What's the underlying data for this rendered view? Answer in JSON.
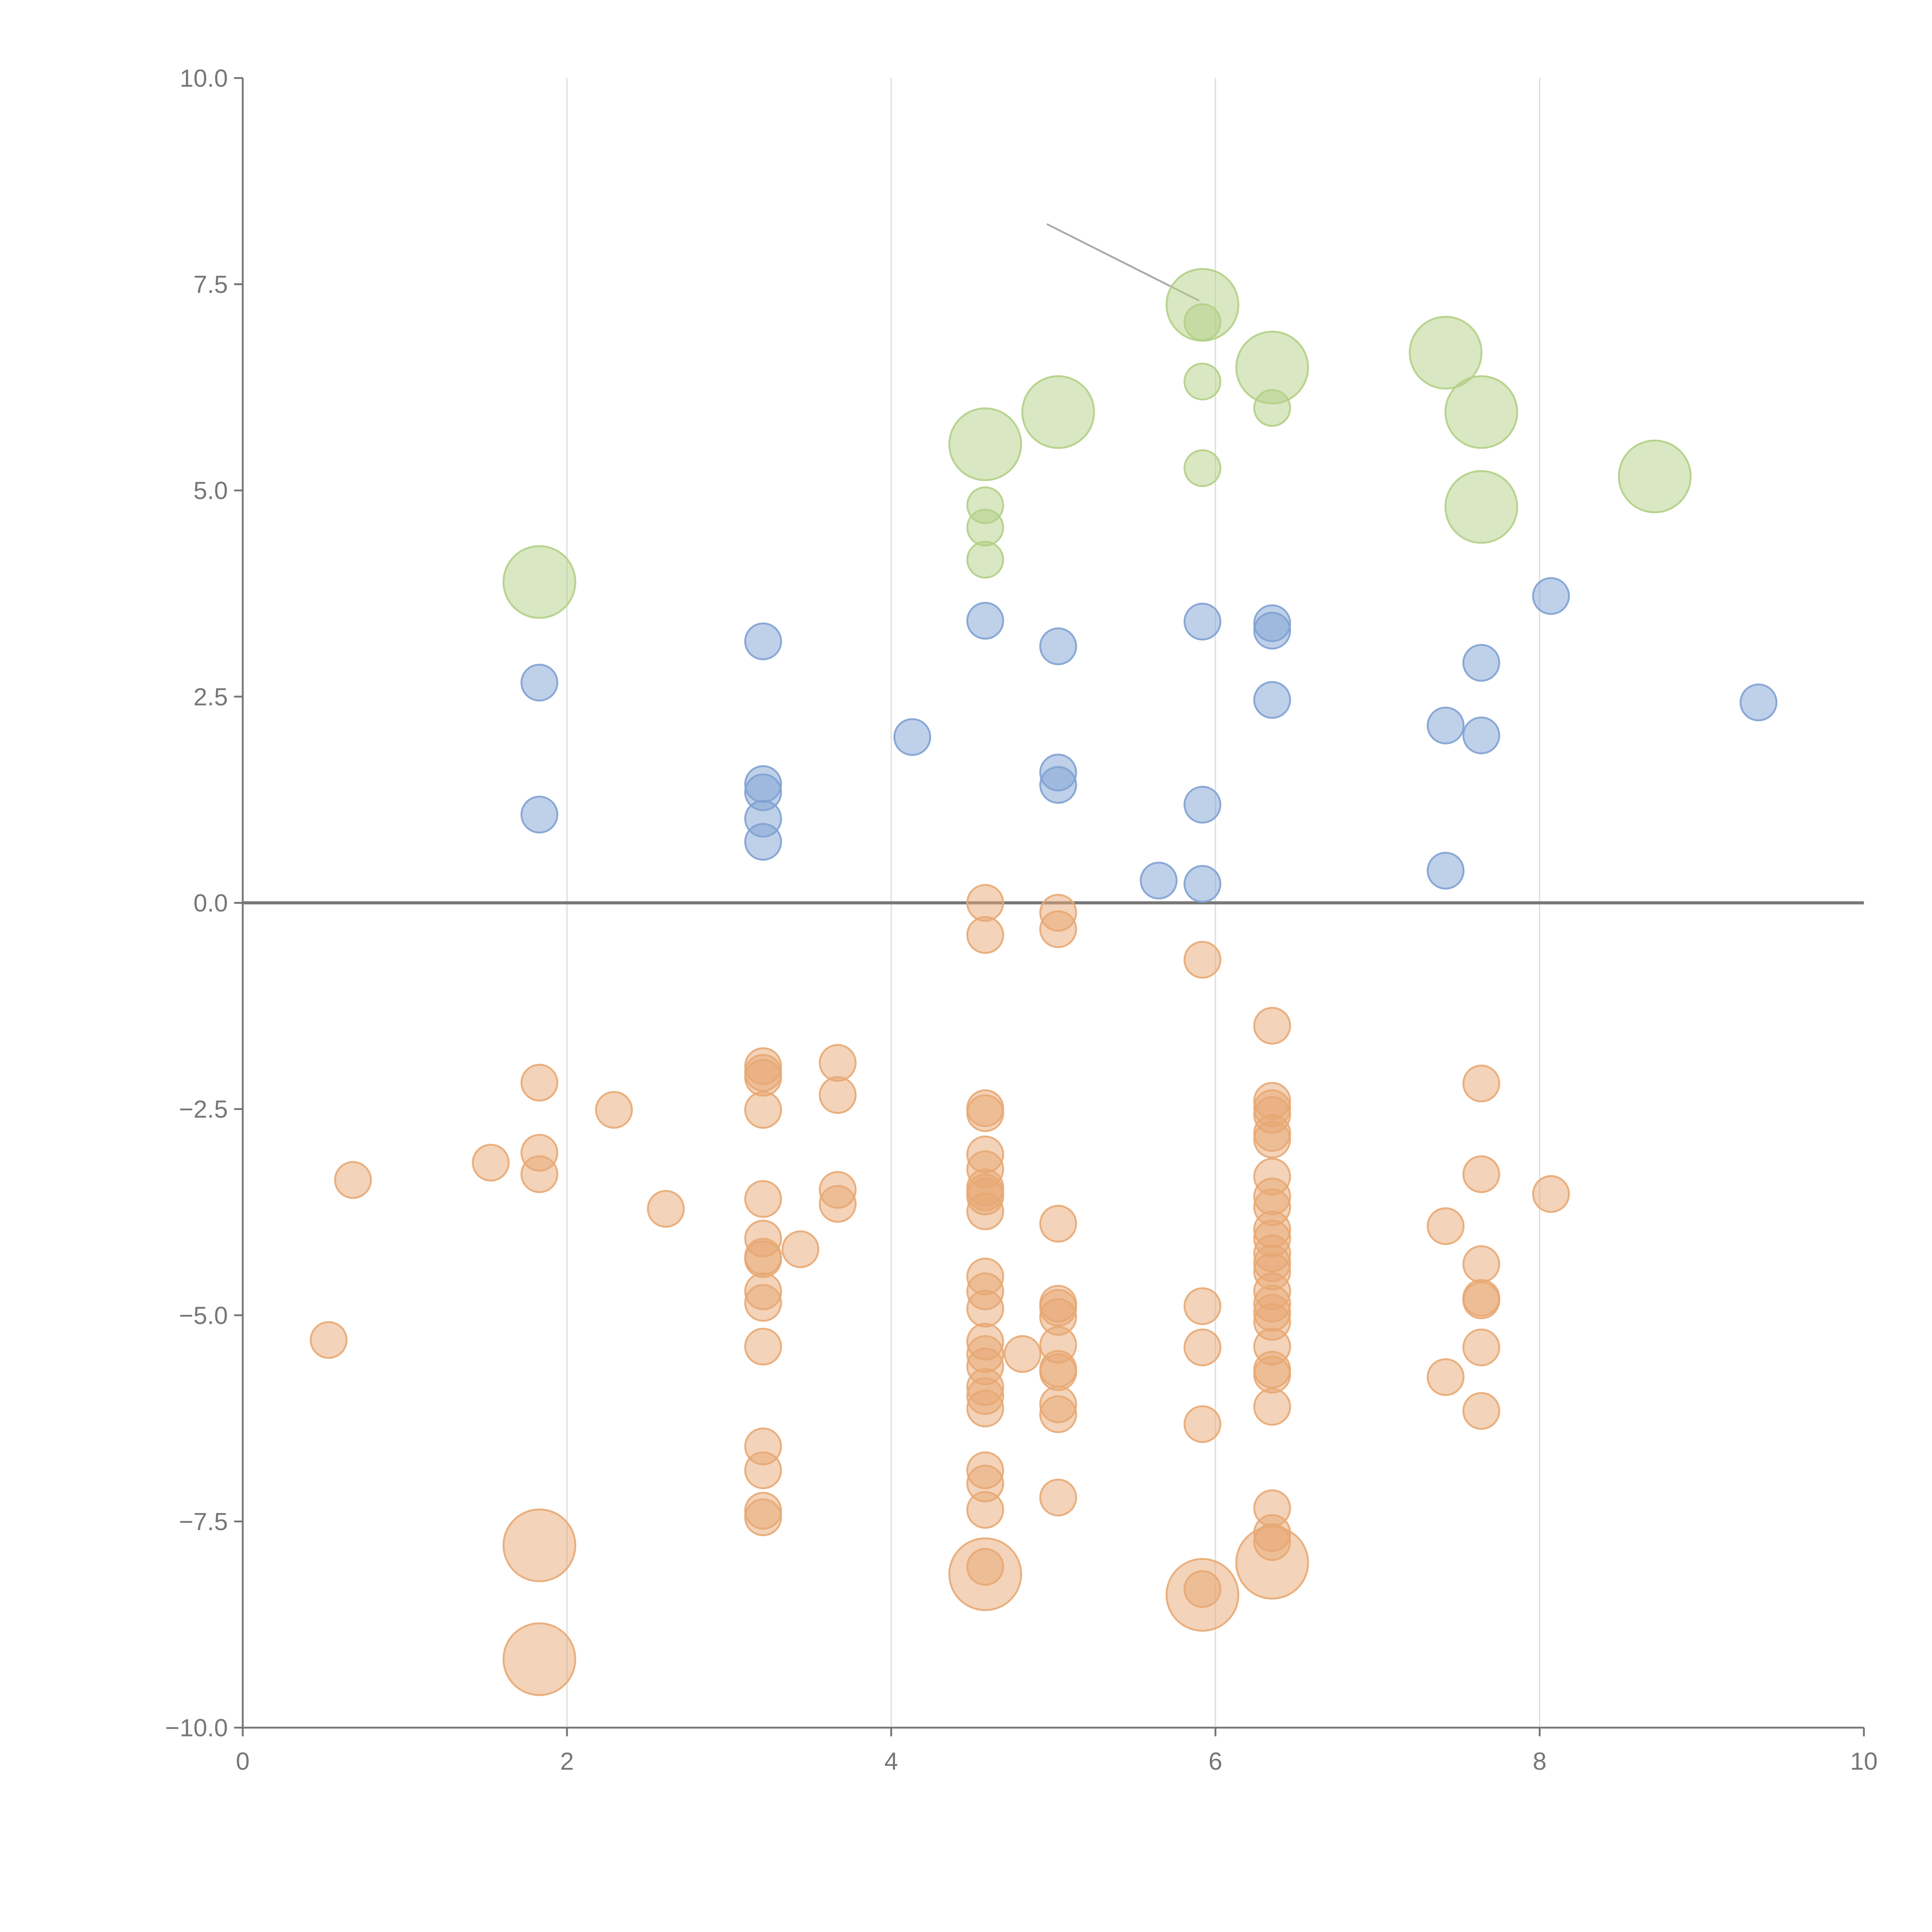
{
  "chart_data": {
    "type": "scatter",
    "title": "",
    "xlabel": "",
    "ylabel": "",
    "xlim": [
      0,
      10
    ],
    "ylim": [
      -10,
      10
    ],
    "x_ticks": [
      "0",
      "2",
      "4",
      "6",
      "8",
      "10"
    ],
    "x_tick_values": [
      0,
      2,
      4,
      6,
      8,
      10
    ],
    "y_ticks": [
      "10.0",
      "7.5",
      "5.0",
      "2.5",
      "0.0",
      "−2.5",
      "−5.0",
      "−7.5",
      "−10.0"
    ],
    "y_tick_values": [
      10,
      7.5,
      5,
      2.5,
      0,
      -2.5,
      -5,
      -7.5,
      -10
    ],
    "grid": "vertical",
    "reference_line_y": 0,
    "annotation_line": {
      "from": [
        4.96,
        8.23
      ],
      "to": [
        5.9,
        7.3
      ]
    },
    "series": [
      {
        "name": "green",
        "color": "#b3cf86",
        "points": [
          [
            1.83,
            3.89,
            2
          ],
          [
            4.58,
            5.56,
            2
          ],
          [
            5.03,
            5.95,
            2
          ],
          [
            5.92,
            7.25,
            2
          ],
          [
            6.35,
            6.49,
            2
          ],
          [
            7.42,
            6.67,
            2
          ],
          [
            7.64,
            5.95,
            2
          ],
          [
            7.64,
            4.8,
            2
          ],
          [
            8.71,
            5.17,
            2
          ],
          [
            5.92,
            7.04,
            1
          ],
          [
            5.92,
            6.32,
            1
          ],
          [
            5.92,
            5.27,
            1
          ],
          [
            6.35,
            6.0,
            1
          ],
          [
            4.58,
            4.82,
            1
          ],
          [
            4.58,
            4.55,
            1
          ],
          [
            4.58,
            4.16,
            1
          ]
        ]
      },
      {
        "name": "blue",
        "color": "#7fa1d3",
        "points": [
          [
            1.83,
            2.67,
            1
          ],
          [
            1.83,
            1.07,
            1
          ],
          [
            3.21,
            3.17,
            1
          ],
          [
            3.21,
            1.44,
            1
          ],
          [
            3.21,
            1.34,
            1
          ],
          [
            3.21,
            1.02,
            1
          ],
          [
            3.21,
            0.74,
            1
          ],
          [
            4.13,
            2.01,
            1
          ],
          [
            4.58,
            3.42,
            1
          ],
          [
            5.03,
            3.11,
            1
          ],
          [
            5.03,
            1.58,
            1
          ],
          [
            5.03,
            1.43,
            1
          ],
          [
            5.65,
            0.27,
            1
          ],
          [
            5.92,
            3.41,
            1
          ],
          [
            5.92,
            1.19,
            1
          ],
          [
            5.92,
            0.23,
            1
          ],
          [
            6.35,
            3.39,
            1
          ],
          [
            6.35,
            3.3,
            1
          ],
          [
            6.35,
            2.46,
            1
          ],
          [
            7.42,
            2.15,
            1
          ],
          [
            7.64,
            2.91,
            1
          ],
          [
            7.64,
            2.03,
            1
          ],
          [
            7.42,
            0.39,
            1
          ],
          [
            8.07,
            3.72,
            1
          ],
          [
            9.35,
            2.43,
            1
          ]
        ]
      },
      {
        "name": "orange",
        "color": "#e8a873",
        "points": [
          [
            0.53,
            -5.3,
            1
          ],
          [
            0.68,
            -3.36,
            1
          ],
          [
            1.53,
            -3.15,
            1
          ],
          [
            1.83,
            -2.18,
            1
          ],
          [
            1.83,
            -3.03,
            1
          ],
          [
            1.83,
            -3.29,
            1
          ],
          [
            1.83,
            -7.79,
            2
          ],
          [
            1.83,
            -9.17,
            2
          ],
          [
            2.29,
            -2.51,
            1
          ],
          [
            2.61,
            -3.71,
            1
          ],
          [
            3.21,
            -1.98,
            1
          ],
          [
            3.21,
            -2.06,
            1
          ],
          [
            3.21,
            -2.12,
            1
          ],
          [
            3.21,
            -2.51,
            1
          ],
          [
            3.21,
            -3.59,
            1
          ],
          [
            3.21,
            -4.07,
            1
          ],
          [
            3.21,
            -4.29,
            1
          ],
          [
            3.21,
            -4.32,
            1
          ],
          [
            3.21,
            -4.71,
            1
          ],
          [
            3.21,
            -4.85,
            1
          ],
          [
            3.21,
            -5.38,
            1
          ],
          [
            3.21,
            -6.59,
            1
          ],
          [
            3.21,
            -6.88,
            1
          ],
          [
            3.21,
            -7.37,
            1
          ],
          [
            3.21,
            -7.45,
            1
          ],
          [
            3.44,
            -4.2,
            1
          ],
          [
            3.67,
            -1.94,
            1
          ],
          [
            3.67,
            -2.33,
            1
          ],
          [
            3.67,
            -3.48,
            1
          ],
          [
            3.67,
            -3.65,
            1
          ],
          [
            4.58,
            0.0,
            1
          ],
          [
            4.58,
            -0.39,
            1
          ],
          [
            4.58,
            -2.49,
            1
          ],
          [
            4.58,
            -2.55,
            1
          ],
          [
            4.58,
            -3.05,
            1
          ],
          [
            4.58,
            -3.23,
            1
          ],
          [
            4.58,
            -3.45,
            1
          ],
          [
            4.58,
            -3.51,
            1
          ],
          [
            4.58,
            -3.56,
            1
          ],
          [
            4.58,
            -3.74,
            1
          ],
          [
            4.58,
            -4.53,
            1
          ],
          [
            4.58,
            -4.71,
            1
          ],
          [
            4.58,
            -4.92,
            1
          ],
          [
            4.58,
            -5.32,
            1
          ],
          [
            4.58,
            -5.47,
            1
          ],
          [
            4.58,
            -5.62,
            1
          ],
          [
            4.58,
            -5.87,
            1
          ],
          [
            4.58,
            -5.98,
            1
          ],
          [
            4.58,
            -6.13,
            1
          ],
          [
            4.58,
            -6.88,
            1
          ],
          [
            4.58,
            -7.04,
            1
          ],
          [
            4.58,
            -7.36,
            1
          ],
          [
            4.58,
            -8.05,
            1
          ],
          [
            4.58,
            -8.14,
            2
          ],
          [
            4.81,
            -5.47,
            1
          ],
          [
            5.03,
            -0.12,
            1
          ],
          [
            5.03,
            -0.32,
            1
          ],
          [
            5.03,
            -3.89,
            1
          ],
          [
            5.03,
            -4.86,
            1
          ],
          [
            5.03,
            -4.91,
            1
          ],
          [
            5.03,
            -5.02,
            1
          ],
          [
            5.03,
            -5.36,
            1
          ],
          [
            5.03,
            -5.65,
            1
          ],
          [
            5.03,
            -5.69,
            1
          ],
          [
            5.03,
            -6.08,
            1
          ],
          [
            5.03,
            -6.2,
            1
          ],
          [
            5.03,
            -7.21,
            1
          ],
          [
            5.92,
            -0.69,
            1
          ],
          [
            5.92,
            -4.89,
            1
          ],
          [
            5.92,
            -5.39,
            1
          ],
          [
            5.92,
            -6.32,
            1
          ],
          [
            5.92,
            -8.32,
            1
          ],
          [
            5.92,
            -8.39,
            2
          ],
          [
            6.35,
            -1.49,
            1
          ],
          [
            6.35,
            -2.4,
            1
          ],
          [
            6.35,
            -2.49,
            1
          ],
          [
            6.35,
            -2.57,
            1
          ],
          [
            6.35,
            -2.79,
            1
          ],
          [
            6.35,
            -2.87,
            1
          ],
          [
            6.35,
            -3.32,
            1
          ],
          [
            6.35,
            -3.56,
            1
          ],
          [
            6.35,
            -3.69,
            1
          ],
          [
            6.35,
            -3.96,
            1
          ],
          [
            6.35,
            -4.07,
            1
          ],
          [
            6.35,
            -4.25,
            1
          ],
          [
            6.35,
            -4.37,
            1
          ],
          [
            6.35,
            -4.47,
            1
          ],
          [
            6.35,
            -4.71,
            1
          ],
          [
            6.35,
            -4.86,
            1
          ],
          [
            6.35,
            -4.97,
            1
          ],
          [
            6.35,
            -5.08,
            1
          ],
          [
            6.35,
            -5.38,
            1
          ],
          [
            6.35,
            -5.66,
            1
          ],
          [
            6.35,
            -5.72,
            1
          ],
          [
            6.35,
            -6.11,
            1
          ],
          [
            6.35,
            -7.34,
            1
          ],
          [
            6.35,
            -7.64,
            1
          ],
          [
            6.35,
            -7.75,
            1
          ],
          [
            6.35,
            -8.0,
            2
          ],
          [
            7.42,
            -3.92,
            1
          ],
          [
            7.42,
            -5.75,
            1
          ],
          [
            7.64,
            -2.19,
            1
          ],
          [
            7.64,
            -3.29,
            1
          ],
          [
            7.64,
            -4.38,
            1
          ],
          [
            7.64,
            -4.79,
            1
          ],
          [
            7.64,
            -4.82,
            1
          ],
          [
            7.64,
            -5.39,
            1
          ],
          [
            7.64,
            -6.16,
            1
          ],
          [
            8.07,
            -3.53,
            1
          ]
        ]
      }
    ]
  }
}
